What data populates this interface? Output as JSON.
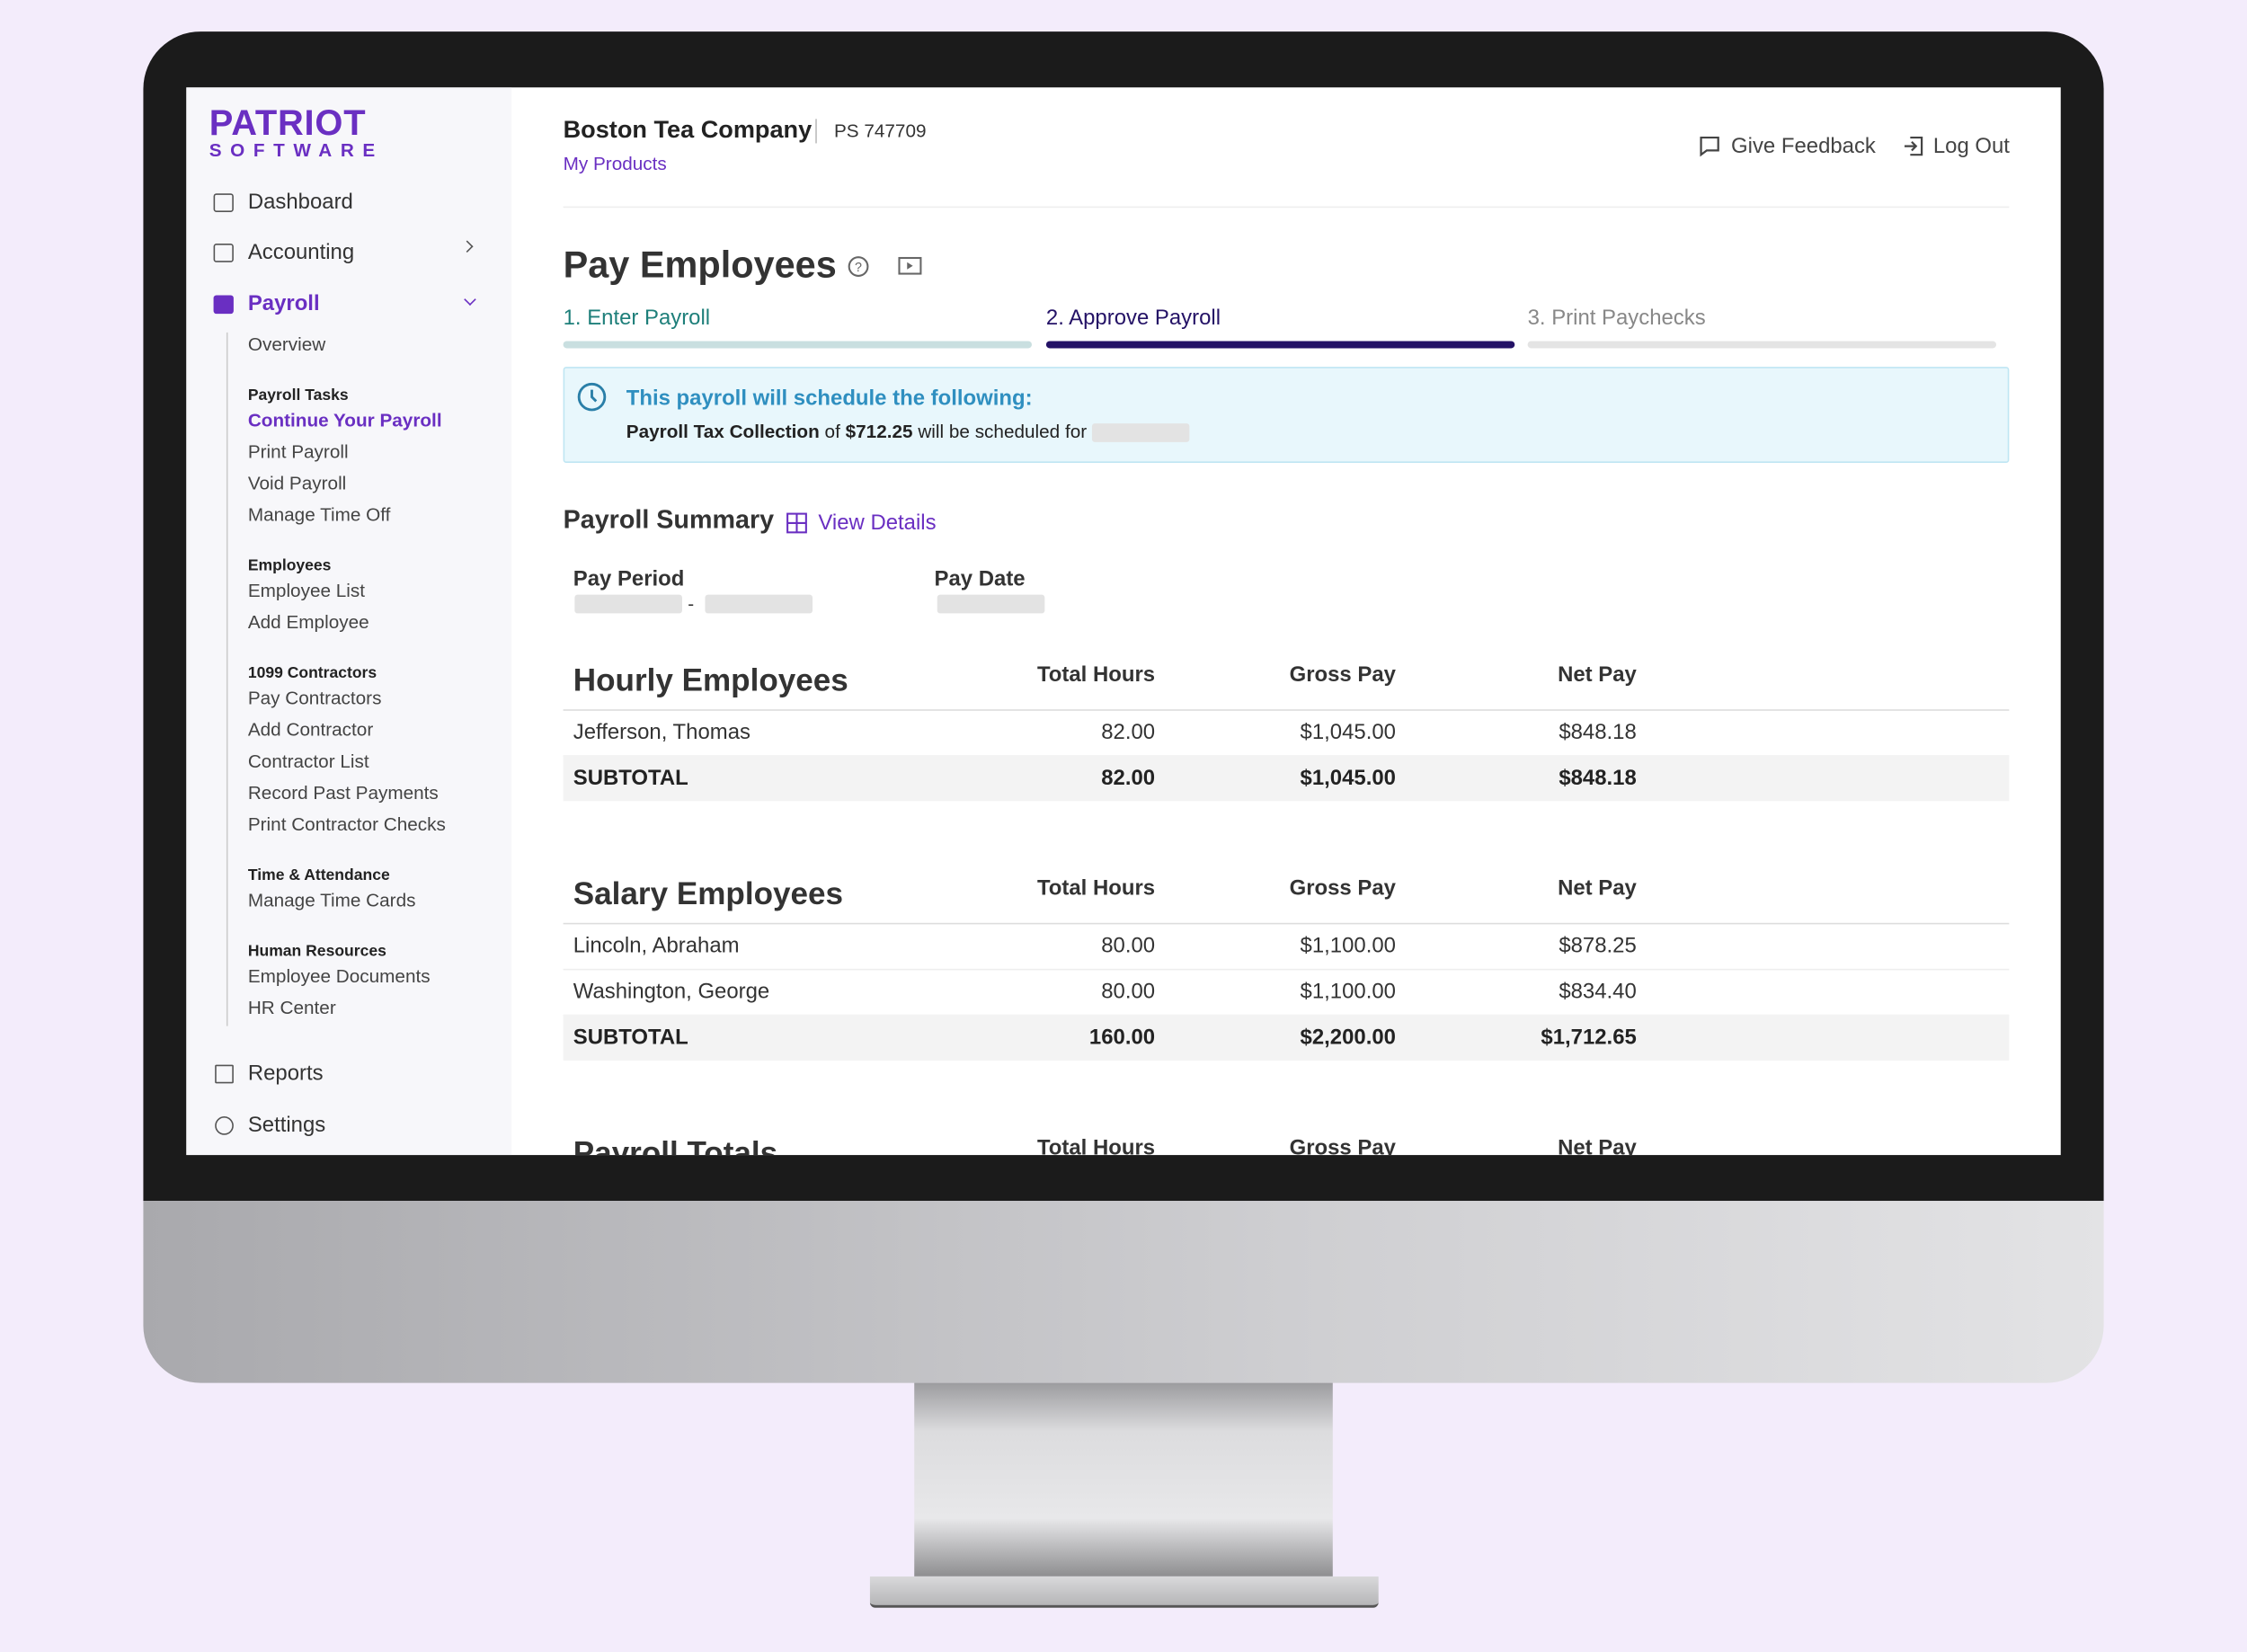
{
  "brand": {
    "name": "PATRIOT",
    "tagline": "SOFTWARE"
  },
  "header": {
    "company": "Boston Tea Company",
    "account": "PS 747709",
    "link": "My Products",
    "feedback": "Give Feedback",
    "logout": "Log Out"
  },
  "sidebar": {
    "top": [
      "Dashboard",
      "Accounting",
      "Payroll"
    ],
    "overview": "Overview",
    "groups": [
      {
        "title": "Payroll Tasks",
        "items": [
          "Continue Your Payroll",
          "Print Payroll",
          "Void Payroll",
          "Manage Time Off"
        ]
      },
      {
        "title": "Employees",
        "items": [
          "Employee List",
          "Add Employee"
        ]
      },
      {
        "title": "1099 Contractors",
        "items": [
          "Pay Contractors",
          "Add Contractor",
          "Contractor List",
          "Record Past Payments",
          "Print Contractor Checks"
        ]
      },
      {
        "title": "Time & Attendance",
        "items": [
          "Manage Time Cards"
        ]
      },
      {
        "title": "Human Resources",
        "items": [
          "Employee Documents",
          "HR Center"
        ]
      }
    ],
    "bottom": [
      "Reports",
      "Settings"
    ]
  },
  "page": {
    "title": "Pay Employees",
    "steps": [
      "1. Enter Payroll",
      "2. Approve Payroll",
      "3. Print Paychecks"
    ],
    "alert": {
      "title": "This payroll will schedule the following:",
      "item": "Payroll Tax Collection",
      "of": "of",
      "amount": "$712.25",
      "rest": "will be scheduled for"
    },
    "summary": {
      "title": "Payroll Summary",
      "link": "View Details",
      "pay_period": "Pay Period",
      "pay_date": "Pay Date",
      "dash": "-"
    }
  },
  "tables": [
    {
      "title": "Hourly Employees",
      "columns": [
        "Total Hours",
        "Gross Pay",
        "Net Pay"
      ],
      "rows": [
        [
          "Jefferson, Thomas",
          "82.00",
          "$1,045.00",
          "$848.18"
        ]
      ],
      "subtotal": [
        "SUBTOTAL",
        "82.00",
        "$1,045.00",
        "$848.18"
      ]
    },
    {
      "title": "Salary Employees",
      "columns": [
        "Total Hours",
        "Gross Pay",
        "Net Pay"
      ],
      "rows": [
        [
          "Lincoln, Abraham",
          "80.00",
          "$1,100.00",
          "$878.25"
        ],
        [
          "Washington, George",
          "80.00",
          "$1,100.00",
          "$834.40"
        ]
      ],
      "subtotal": [
        "SUBTOTAL",
        "160.00",
        "$2,200.00",
        "$1,712.65"
      ]
    },
    {
      "title": "Payroll Totals",
      "columns": [
        "Total Hours",
        "Gross Pay",
        "Net Pay"
      ],
      "rows": []
    }
  ]
}
